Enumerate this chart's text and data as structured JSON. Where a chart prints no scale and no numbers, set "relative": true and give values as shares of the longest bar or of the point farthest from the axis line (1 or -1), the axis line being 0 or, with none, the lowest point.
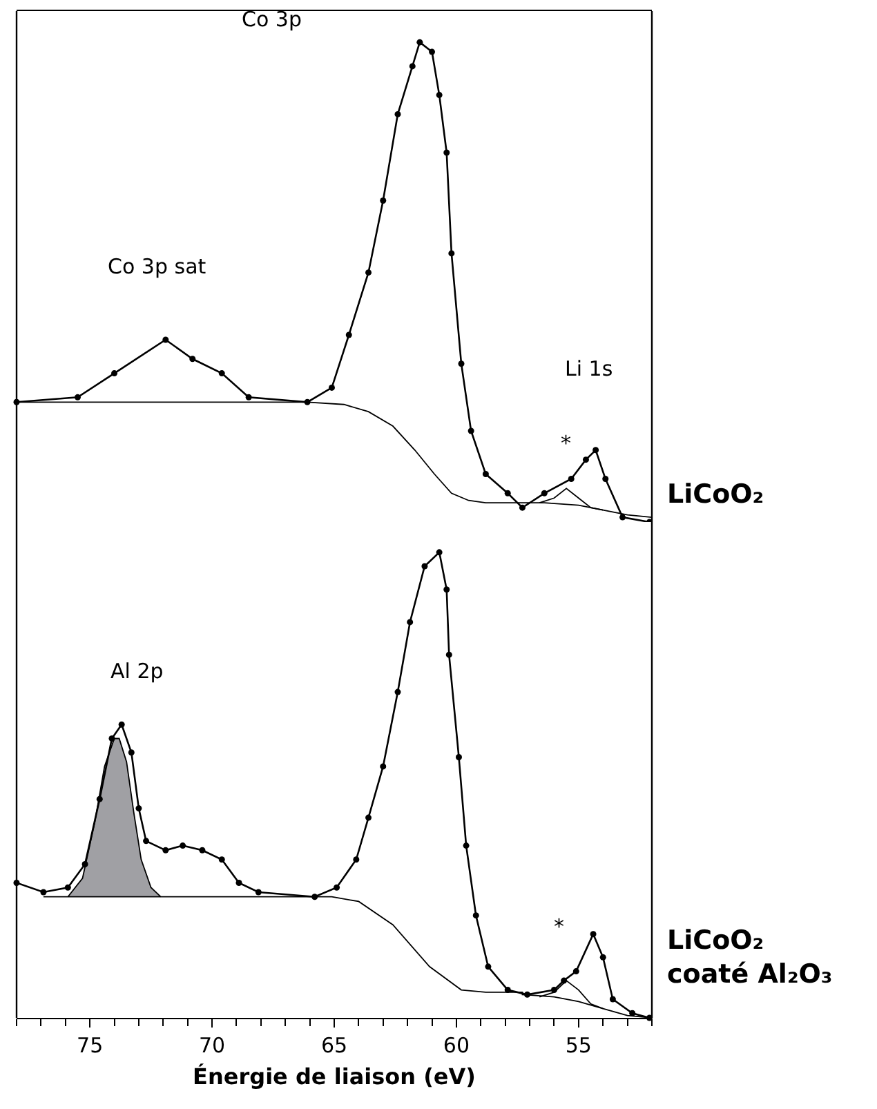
{
  "chart_data": [
    {
      "type": "line",
      "relative": true,
      "xlim": [
        78,
        52
      ],
      "xticks": [
        75,
        70,
        65,
        60,
        55
      ],
      "tick_labels": false,
      "annotations": [
        "LiCoO₂",
        "Co 3p",
        "Co 3p sat",
        "Li 1s",
        "*"
      ],
      "series": [
        {
          "type": "line",
          "marker": "circle",
          "color": "#000000",
          "x": [
            78.0,
            75.5,
            74.0,
            71.9,
            70.8,
            69.6,
            68.5,
            66.1,
            65.1,
            64.4,
            63.6,
            63.0,
            62.4,
            61.8,
            61.5,
            61.0,
            60.7,
            60.4,
            60.2,
            59.8,
            59.4,
            58.8,
            57.9,
            57.3,
            56.4,
            55.3,
            54.7,
            54.3,
            53.9,
            53.2,
            52.1
          ],
          "values": [
            0.25,
            0.26,
            0.31,
            0.38,
            0.34,
            0.31,
            0.26,
            0.25,
            0.28,
            0.39,
            0.52,
            0.67,
            0.85,
            0.95,
            1.0,
            0.98,
            0.89,
            0.77,
            0.56,
            0.33,
            0.19,
            0.1,
            0.06,
            0.03,
            0.06,
            0.09,
            0.13,
            0.15,
            0.09,
            0.01,
            0.0
          ]
        },
        {
          "type": "line",
          "marker": "none",
          "color": "#000000",
          "x": [
            78.0,
            66.1,
            64.6,
            63.6,
            62.6,
            61.7,
            60.9,
            60.2,
            59.5,
            58.8,
            57.5,
            56.4,
            55.0,
            54.0,
            53.0,
            52.0
          ],
          "values": [
            0.25,
            0.25,
            0.245,
            0.23,
            0.2,
            0.15,
            0.1,
            0.06,
            0.045,
            0.04,
            0.04,
            0.04,
            0.035,
            0.025,
            0.015,
            0.01
          ]
        },
        {
          "type": "line",
          "marker": "none",
          "color": "#000000",
          "x": [
            56.6,
            56.0,
            55.5,
            55.0,
            54.5,
            54.0
          ],
          "values": [
            0.04,
            0.05,
            0.07,
            0.05,
            0.03,
            0.025
          ]
        }
      ]
    },
    {
      "type": "line",
      "relative": true,
      "xlim": [
        78,
        52
      ],
      "xlabel": "Énergie de liaison (eV)",
      "xticks": [
        75,
        70,
        65,
        60,
        55
      ],
      "annotations": [
        "LiCoO₂\ncoaté Al₂O₃",
        "Al 2p",
        "*"
      ],
      "series": [
        {
          "type": "area",
          "marker": "none",
          "color": "#a0a0a4",
          "x": [
            75.9,
            75.3,
            74.8,
            74.4,
            74.0,
            73.8,
            73.5,
            73.2,
            72.9,
            72.5,
            72.1
          ],
          "values": [
            0.26,
            0.3,
            0.42,
            0.54,
            0.6,
            0.6,
            0.55,
            0.44,
            0.34,
            0.28,
            0.26
          ]
        },
        {
          "type": "line",
          "marker": "circle",
          "color": "#000000",
          "x": [
            78.0,
            76.9,
            75.9,
            75.2,
            74.6,
            74.1,
            73.7,
            73.3,
            73.0,
            72.7,
            71.9,
            71.2,
            70.4,
            69.6,
            68.9,
            68.1,
            65.8,
            64.9,
            64.1,
            63.6,
            63.0,
            62.4,
            61.9,
            61.3,
            60.7,
            60.4,
            60.3,
            59.9,
            59.6,
            59.2,
            58.7,
            57.9,
            57.1,
            56.0,
            55.6,
            55.1,
            54.4,
            54.0,
            53.6,
            52.8,
            52.1
          ],
          "values": [
            0.29,
            0.27,
            0.28,
            0.33,
            0.47,
            0.6,
            0.63,
            0.57,
            0.45,
            0.38,
            0.36,
            0.37,
            0.36,
            0.34,
            0.29,
            0.27,
            0.26,
            0.28,
            0.34,
            0.43,
            0.54,
            0.7,
            0.85,
            0.97,
            1.0,
            0.92,
            0.78,
            0.56,
            0.37,
            0.22,
            0.11,
            0.06,
            0.05,
            0.06,
            0.08,
            0.1,
            0.18,
            0.13,
            0.04,
            0.01,
            0.0
          ]
        },
        {
          "type": "line",
          "marker": "none",
          "color": "#000000",
          "x": [
            76.9,
            65.1,
            64.0,
            62.6,
            61.1,
            59.8,
            58.8,
            57.9,
            57.3,
            57.3,
            56.0,
            55.0,
            54.0,
            53.0,
            52.0
          ],
          "values": [
            0.26,
            0.26,
            0.25,
            0.2,
            0.11,
            0.06,
            0.055,
            0.055,
            0.055,
            0.05,
            0.045,
            0.035,
            0.02,
            0.005,
            0.0
          ]
        },
        {
          "type": "line",
          "marker": "none",
          "color": "#000000",
          "x": [
            56.6,
            56.0,
            55.5,
            55.0,
            54.5,
            54.0
          ],
          "values": [
            0.045,
            0.055,
            0.08,
            0.06,
            0.03,
            0.02
          ]
        }
      ]
    }
  ]
}
